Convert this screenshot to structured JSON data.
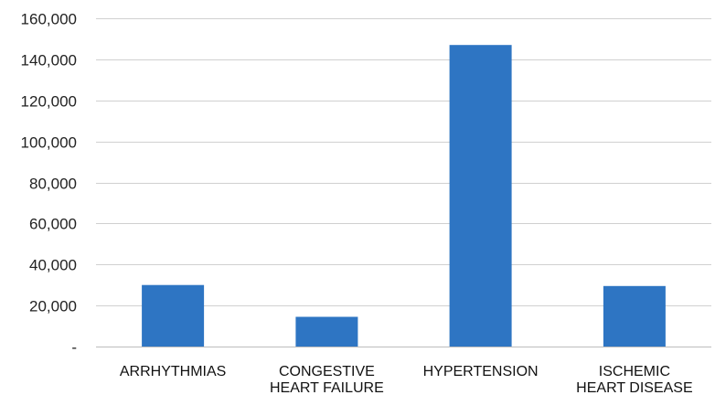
{
  "chart_data": {
    "type": "bar",
    "title": "",
    "xlabel": "",
    "ylabel": "",
    "categories": [
      [
        "ARRHYTHMIAS"
      ],
      [
        "CONGESTIVE",
        "HEART FAILURE"
      ],
      [
        "HYPERTENSION"
      ],
      [
        "ISCHEMIC",
        "HEART DISEASE"
      ]
    ],
    "values": [
      30000,
      14500,
      147000,
      29500
    ],
    "ylim": [
      0,
      160000
    ],
    "y_ticks": [
      0,
      20000,
      40000,
      60000,
      80000,
      100000,
      120000,
      140000,
      160000
    ],
    "y_tick_labels": [
      "-",
      "20,000",
      "40,000",
      "60,000",
      "80,000",
      "100,000",
      "120,000",
      "140,000",
      "160,000"
    ],
    "bar_color": "#2E75C3",
    "grid": true,
    "legend": false
  }
}
